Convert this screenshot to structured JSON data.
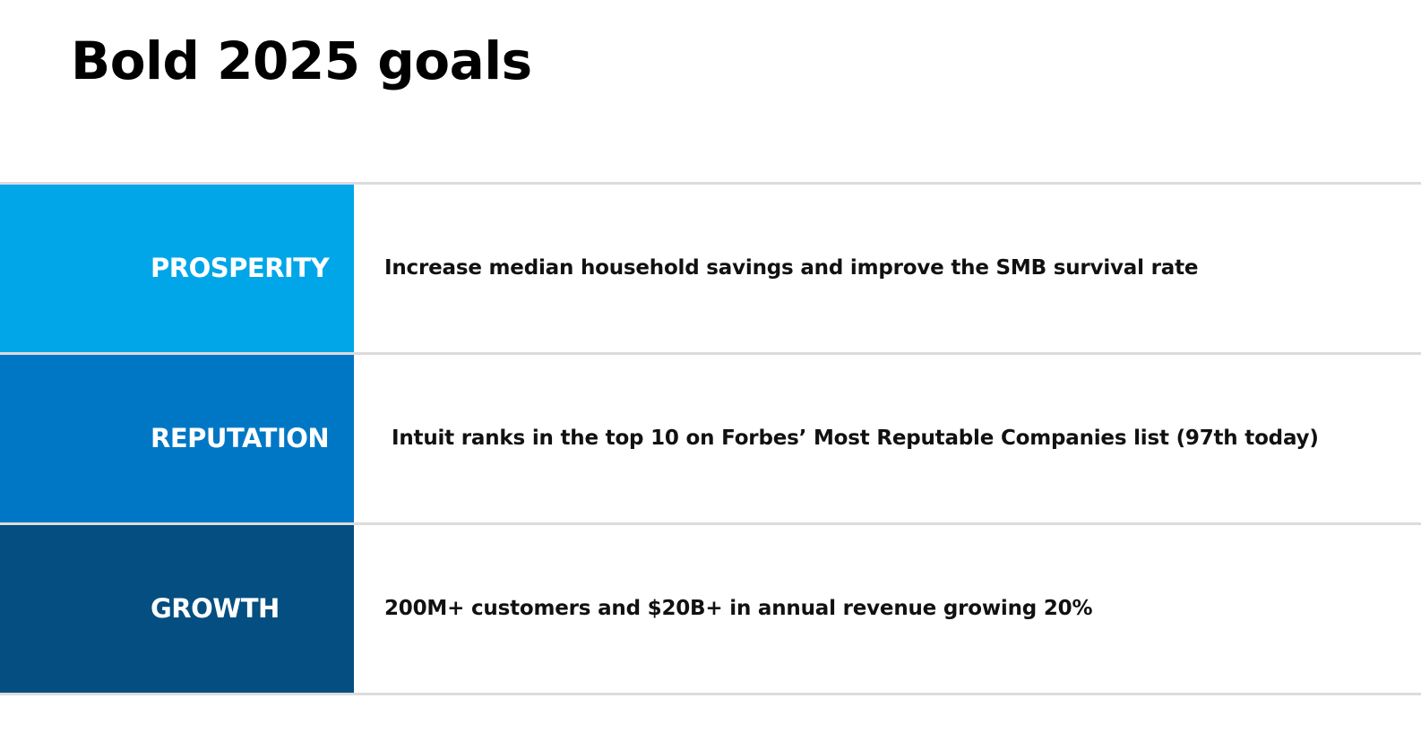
{
  "title": "Bold 2025 goals",
  "goals": [
    {
      "label": "PROSPERITY",
      "description": "Increase median household savings and improve the SMB survival rate",
      "color": "#00a6e8"
    },
    {
      "label": "REPUTATION",
      "description": "Intuit ranks in the top 10 on Forbes’ Most Reputable Companies list (97th today)",
      "color": "#0077c5"
    },
    {
      "label": "GROWTH",
      "description": "200M+ customers and $20B+ in annual revenue growing 20%",
      "color": "#044e81"
    }
  ]
}
